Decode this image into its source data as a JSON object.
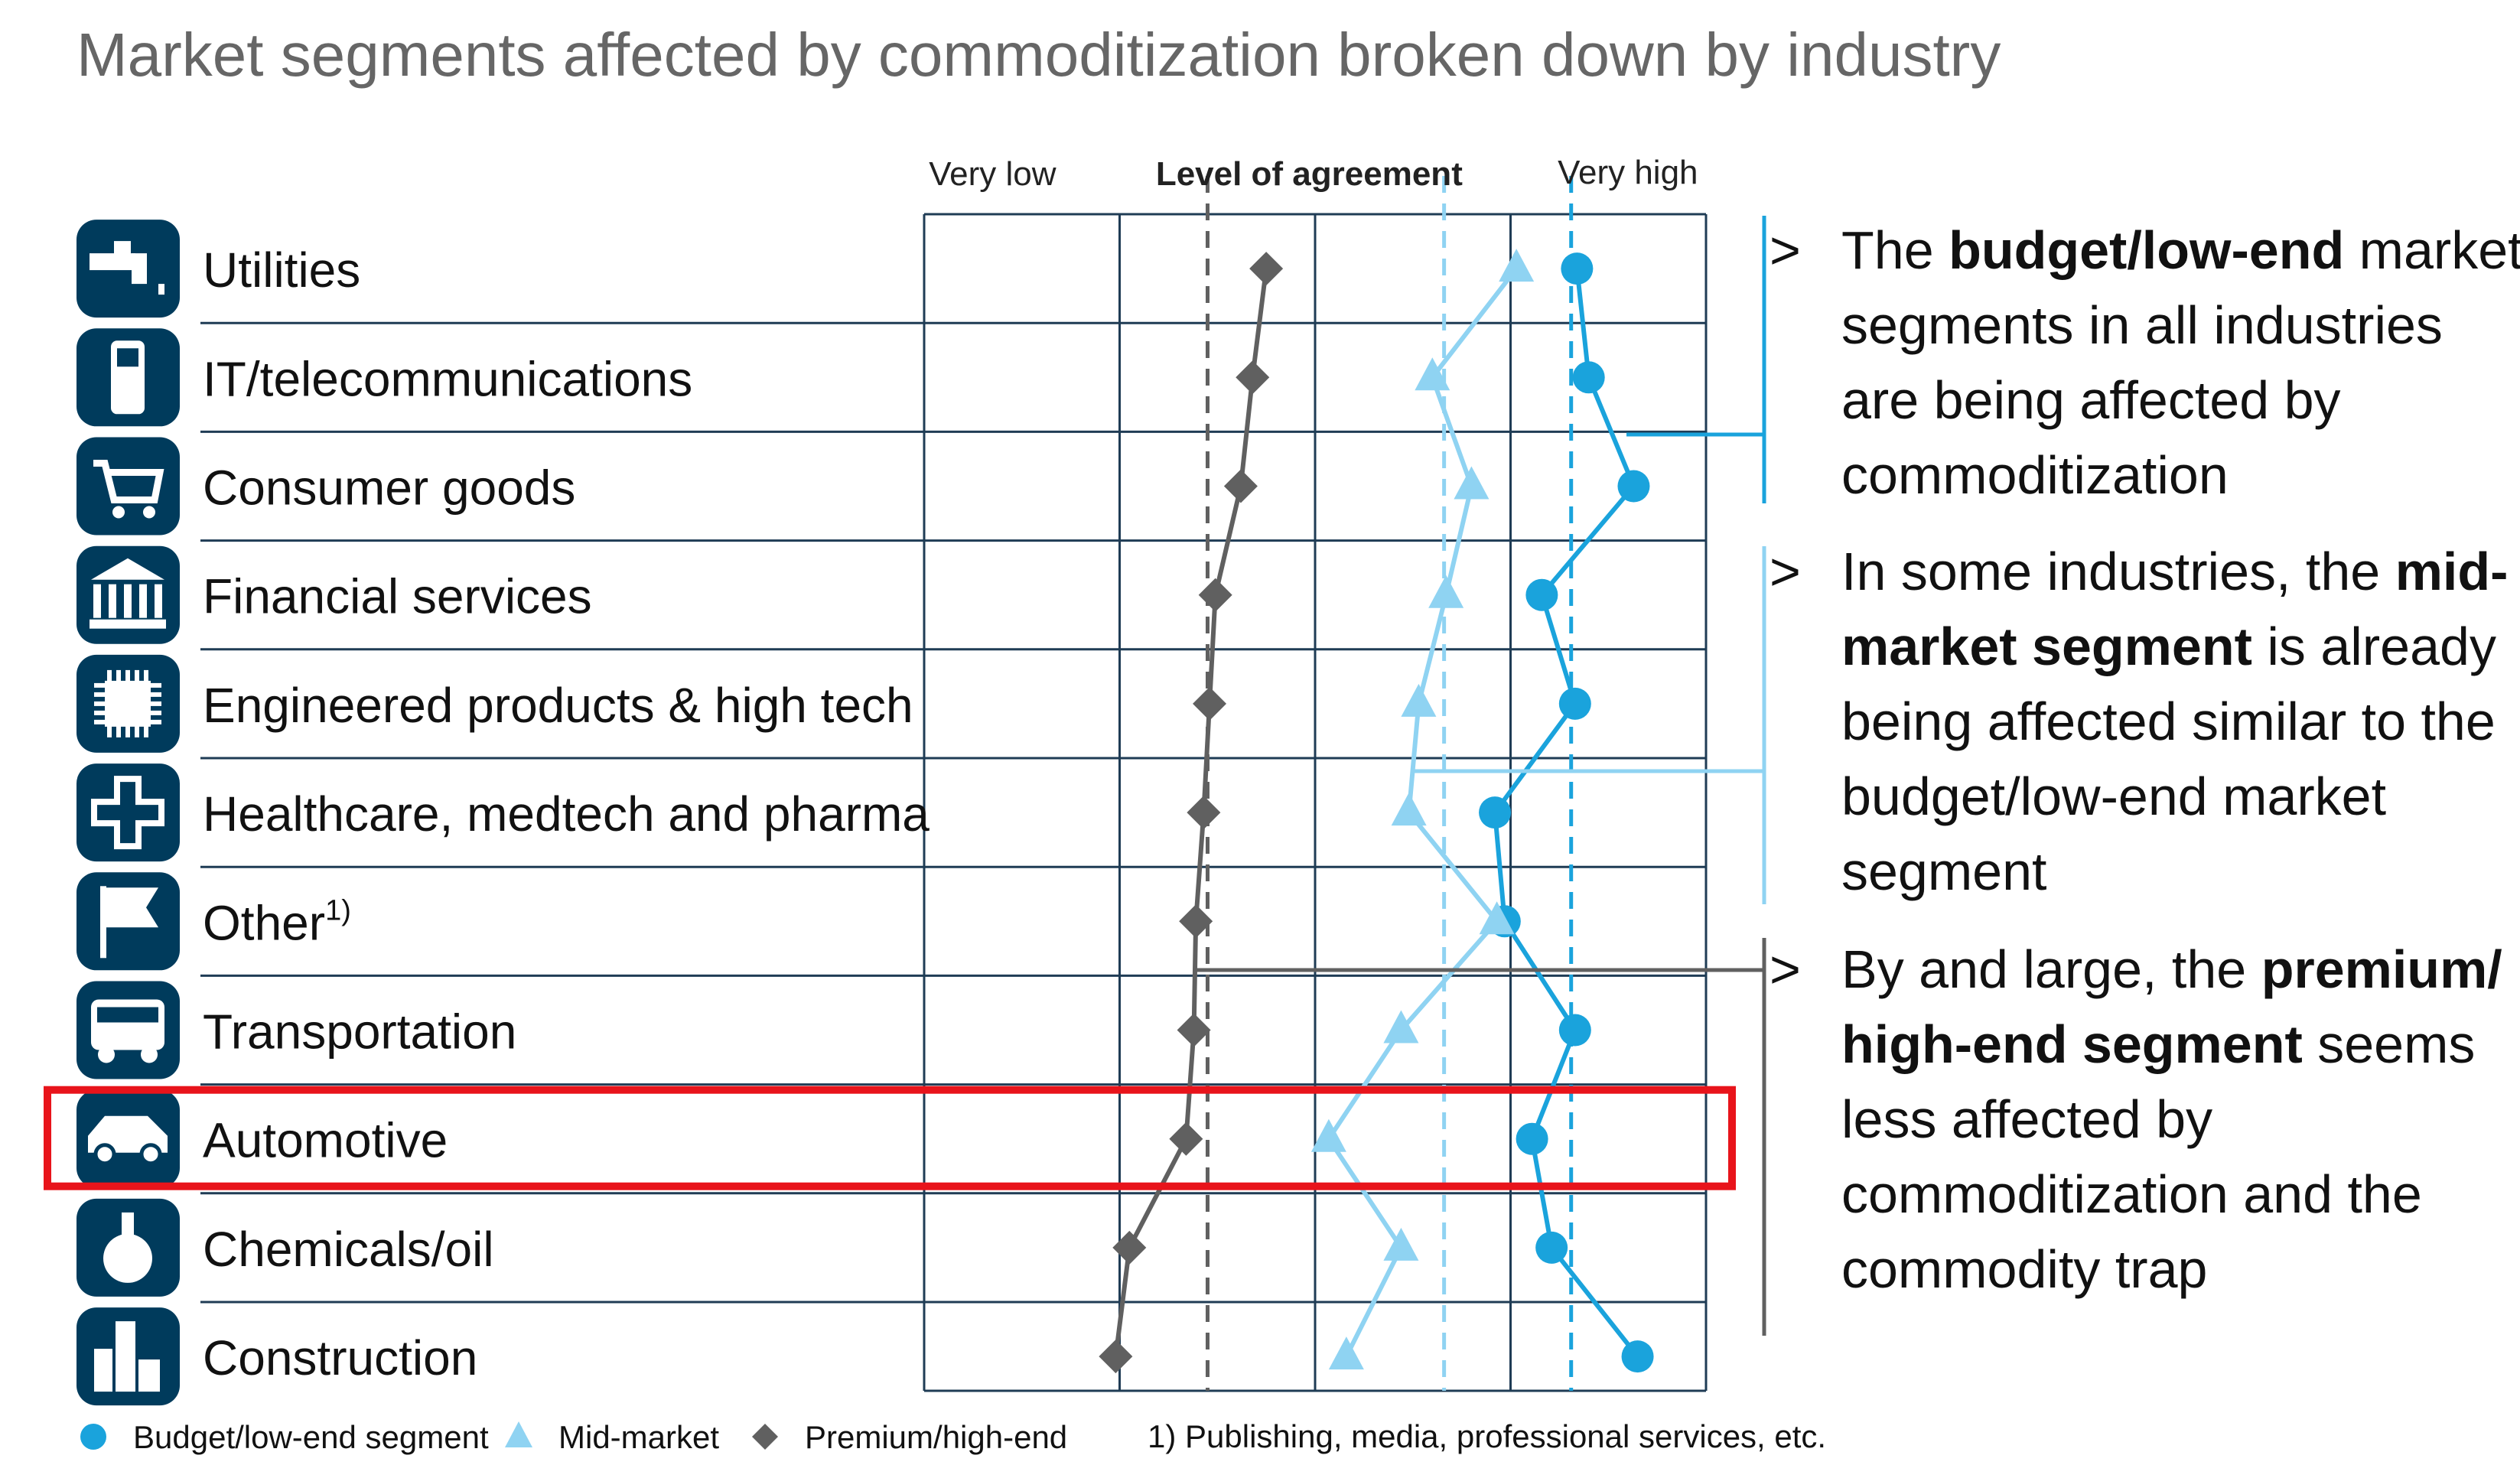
{
  "title": "Market segments affected by commoditization broken down by industry",
  "chart_data": {
    "type": "scatter",
    "title": "Market segments affected by commoditization broken down by industry",
    "axis_title": "Level of agreement",
    "axis_low_label": "Very low",
    "axis_high_label": "Very high",
    "xlim": [
      1,
      5
    ],
    "categories": [
      "Utilities",
      "IT/telecommunications",
      "Consumer goods",
      "Financial services",
      "Engineered products & high tech",
      "Healthcare, medtech and pharma",
      "Other",
      "Transportation",
      "Automotive",
      "Chemicals/oil",
      "Construction"
    ],
    "series": [
      {
        "name": "Budget/low-end segment",
        "marker": "circle",
        "color": "#1aa3dc",
        "values": [
          4.34,
          4.4,
          4.63,
          4.16,
          4.33,
          3.92,
          3.97,
          4.33,
          4.11,
          4.21,
          4.65
        ]
      },
      {
        "name": "Mid-market",
        "marker": "triangle",
        "color": "#8fd3f2",
        "values": [
          4.03,
          3.6,
          3.8,
          3.67,
          3.53,
          3.48,
          3.93,
          3.44,
          3.07,
          3.44,
          3.16
        ]
      },
      {
        "name": "Premium/high-end",
        "marker": "diamond",
        "color": "#606060",
        "values": [
          2.75,
          2.68,
          2.62,
          2.49,
          2.46,
          2.43,
          2.39,
          2.38,
          2.34,
          2.05,
          1.98
        ]
      }
    ],
    "reference_lines": [
      {
        "series": "Premium/high-end",
        "value": 2.45,
        "color": "#606060"
      },
      {
        "series": "Mid-market",
        "value": 3.66,
        "color": "#8fd3f2"
      },
      {
        "series": "Budget/low-end segment",
        "value": 4.31,
        "color": "#1aa3dc"
      }
    ],
    "footnote_marker": "1)",
    "footnote": "1) Publishing, media, professional services, etc."
  },
  "highlight": {
    "category": "Automotive",
    "color": "#e8141b"
  },
  "icons": [
    "tap-icon",
    "phone-icon",
    "cart-icon",
    "bank-icon",
    "chip-icon",
    "medical-cross-icon",
    "flag-icon",
    "bus-icon",
    "car-icon",
    "flask-icon",
    "buildings-icon"
  ],
  "colors": {
    "icon_bg": "#003b5c",
    "grid": "#1f3c55"
  },
  "bullets": [
    {
      "marker": ">",
      "parts": [
        {
          "text": "The ",
          "bold": false
        },
        {
          "text": "budget/low-end",
          "bold": true
        },
        {
          "text": " market segments in all industries are being affected by commoditization",
          "bold": false
        }
      ]
    },
    {
      "marker": ">",
      "parts": [
        {
          "text": "In some industries, the ",
          "bold": false
        },
        {
          "text": "mid-market segment",
          "bold": true
        },
        {
          "text": " is already being affected similar to the budget/low-end market segment",
          "bold": false
        }
      ]
    },
    {
      "marker": ">",
      "parts": [
        {
          "text": "By and large, the ",
          "bold": false
        },
        {
          "text": "premium/ high-end segment",
          "bold": true
        },
        {
          "text": " seems less affected by commoditization and the commodity trap",
          "bold": false
        }
      ]
    }
  ]
}
